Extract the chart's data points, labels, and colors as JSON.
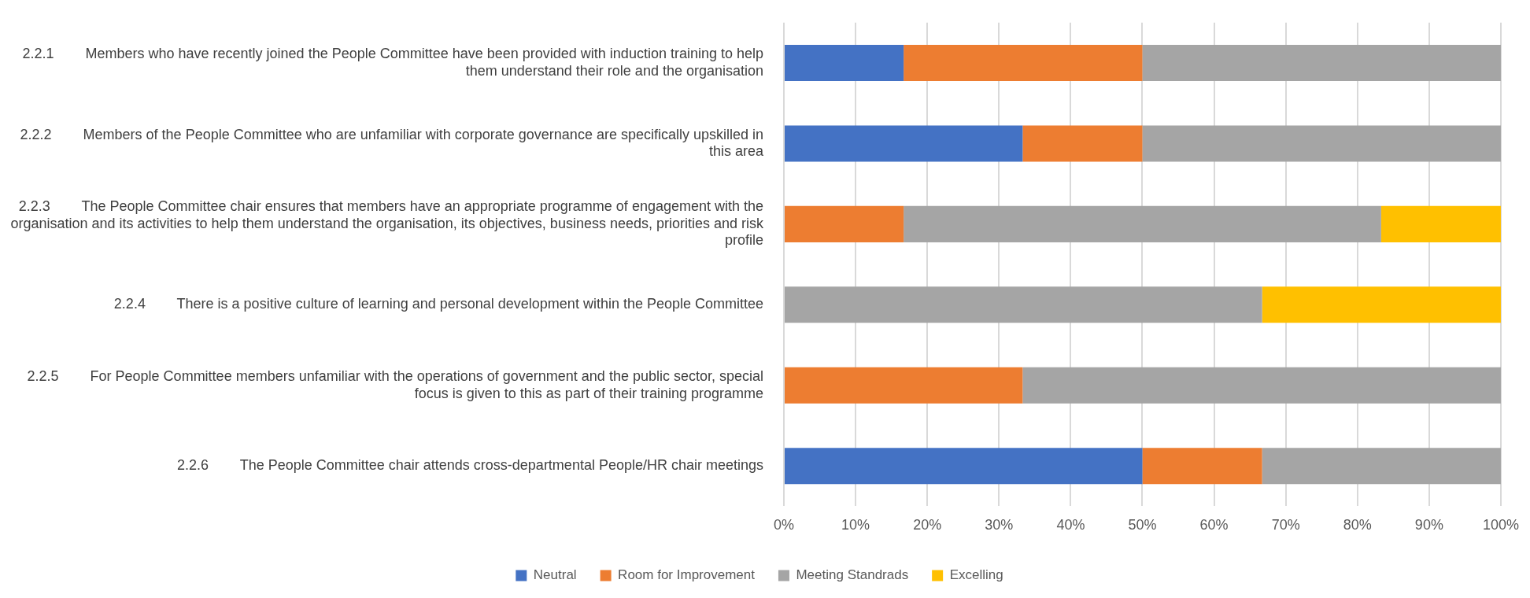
{
  "chart_data": {
    "type": "bar",
    "orientation": "horizontal",
    "stacked": true,
    "categories": [
      "2.2.1        Members who have recently joined the People Committee have been provided with induction training to help them understand their role and the organisation",
      "2.2.2        Members of the People Committee who are unfamiliar with corporate governance are specifically upskilled in this area",
      "2.2.3        The People Committee chair ensures that members have an appropriate programme of engagement with the organisation and its activities to help them understand the organisation, its objectives, business needs, priorities and risk profile",
      "2.2.4        There is a positive culture of learning and personal development within the People Committee",
      "2.2.5        For People Committee members unfamiliar with the operations of government and the public sector, special focus is given to this as part of their training programme",
      "2.2.6        The People Committee chair attends cross-departmental People/HR chair meetings"
    ],
    "series": [
      {
        "name": "Neutral",
        "color": "#4472c4",
        "values": [
          16.7,
          33.3,
          0,
          0,
          0,
          50
        ]
      },
      {
        "name": "Room for Improvement",
        "color": "#ed7d31",
        "values": [
          33.3,
          16.7,
          16.7,
          0,
          33.3,
          16.7
        ]
      },
      {
        "name": "Meeting Standrads",
        "color": "#a5a5a5",
        "values": [
          50,
          50,
          66.6,
          66.7,
          66.7,
          33.3
        ]
      },
      {
        "name": "Excelling",
        "color": "#ffc000",
        "values": [
          0,
          0,
          16.7,
          33.3,
          0,
          0
        ]
      }
    ],
    "xlim": [
      0,
      100
    ],
    "xticks": [
      {
        "value": 0,
        "label": "0%"
      },
      {
        "value": 10,
        "label": "10%"
      },
      {
        "value": 20,
        "label": "20%"
      },
      {
        "value": 30,
        "label": "30%"
      },
      {
        "value": 40,
        "label": "40%"
      },
      {
        "value": 50,
        "label": "50%"
      },
      {
        "value": 60,
        "label": "60%"
      },
      {
        "value": 70,
        "label": "70%"
      },
      {
        "value": 80,
        "label": "80%"
      },
      {
        "value": 90,
        "label": "90%"
      },
      {
        "value": 100,
        "label": "100%"
      }
    ],
    "grid": "x",
    "legend": "bottom"
  }
}
